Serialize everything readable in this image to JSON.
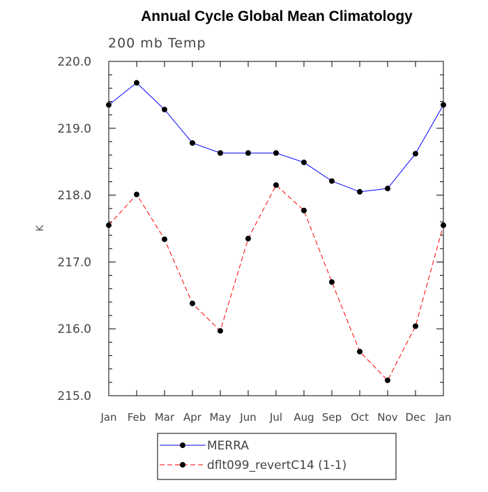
{
  "chart_data": {
    "type": "line",
    "title": "Annual Cycle Global Mean Climatology",
    "subtitle": "200 mb Temp",
    "ylabel": "K",
    "xlabel": "",
    "categories": [
      "Jan",
      "Feb",
      "Mar",
      "Apr",
      "May",
      "Jun",
      "Jul",
      "Aug",
      "Sep",
      "Oct",
      "Nov",
      "Dec",
      "Jan"
    ],
    "ylim": [
      215.0,
      220.0
    ],
    "yticks": [
      "215.0",
      "216.0",
      "217.0",
      "218.0",
      "219.0",
      "220.0"
    ],
    "series": [
      {
        "name": "MERRA",
        "color": "#0000ff",
        "style": "solid",
        "values": [
          219.35,
          219.68,
          219.28,
          218.78,
          218.63,
          218.63,
          218.63,
          218.49,
          218.21,
          218.05,
          218.1,
          218.62,
          219.35
        ]
      },
      {
        "name": "dflt099_revertC14 (1-1)",
        "color": "#ff0000",
        "style": "dashed",
        "values": [
          217.55,
          218.01,
          217.34,
          216.38,
          215.97,
          217.35,
          218.15,
          217.77,
          216.7,
          215.66,
          215.23,
          216.04,
          217.55
        ]
      }
    ],
    "grid": false,
    "legend_position": "bottom-center"
  }
}
